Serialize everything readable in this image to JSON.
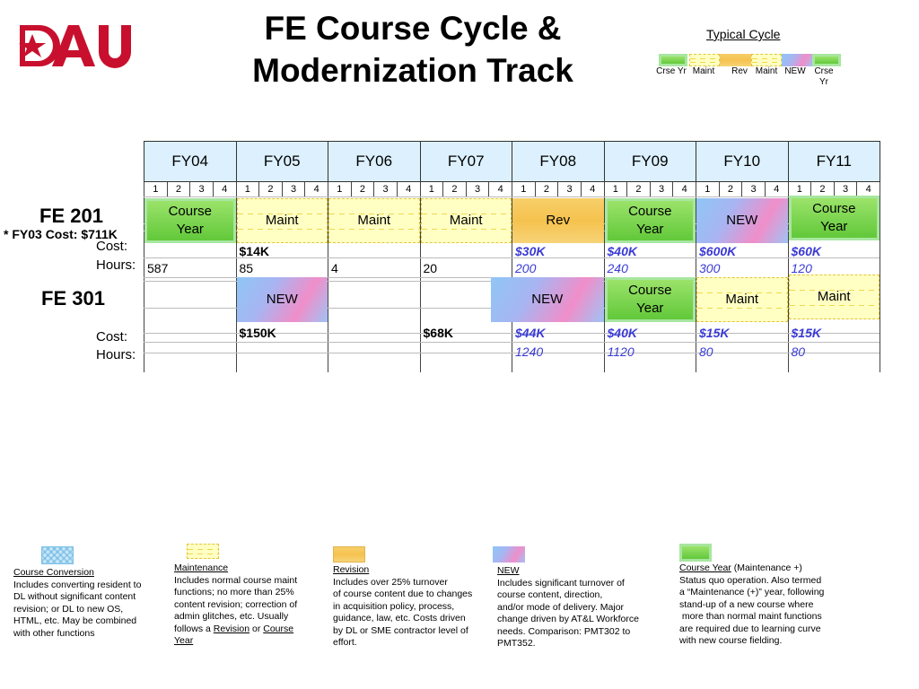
{
  "logo": {
    "text": "DAU"
  },
  "title": {
    "line1": "FE Course Cycle &",
    "line2": "Modernization Track"
  },
  "typical_cycle": {
    "title": "Typical Cycle",
    "labels": [
      "Crse Yr",
      "Maint",
      "Rev",
      "Maint",
      "NEW",
      "Crse Yr"
    ]
  },
  "fiscal_years": [
    "FY04",
    "FY05",
    "FY06",
    "FY07",
    "FY08",
    "FY09",
    "FY10",
    "FY11"
  ],
  "quarters": [
    "1",
    "2",
    "3",
    "4"
  ],
  "fe201": {
    "name": "FE 201",
    "note": "* FY03 Cost: $711K",
    "cost_label": "Cost:",
    "hours_label": "Hours:",
    "phases": [
      {
        "fy": "FY04",
        "label": "Course Year",
        "kind": "course_year"
      },
      {
        "fy": "FY05",
        "label": "Maint",
        "kind": "maintenance"
      },
      {
        "fy": "FY06",
        "label": "Maint",
        "kind": "maintenance"
      },
      {
        "fy": "FY07",
        "label": "Maint",
        "kind": "maintenance"
      },
      {
        "fy": "FY08",
        "label": "Rev",
        "kind": "revision"
      },
      {
        "fy": "FY09",
        "label": "Course Year",
        "kind": "course_year"
      },
      {
        "fy": "FY10",
        "label": "NEW",
        "kind": "new"
      },
      {
        "fy": "FY11",
        "label": "Course Year",
        "kind": "course_year"
      }
    ],
    "costs": {
      "FY05": "$14K",
      "FY08": "$30K",
      "FY09": "$40K",
      "FY10": "$600K",
      "FY11": "$60K"
    },
    "hours": {
      "FY04": "587",
      "FY05": "85",
      "FY06": "4",
      "FY07": "20",
      "FY08": "200",
      "FY09": "240",
      "FY10": "300",
      "FY11": "120"
    }
  },
  "fe301": {
    "name": "FE 301",
    "cost_label": "Cost:",
    "hours_label": "Hours:",
    "phases": [
      {
        "fy": "FY05",
        "label": "NEW",
        "kind": "new"
      },
      {
        "fy": "FY08",
        "label": "NEW",
        "kind": "new"
      },
      {
        "fy": "FY09",
        "label": "Course Year",
        "kind": "course_year"
      },
      {
        "fy": "FY10",
        "label": "Maint",
        "kind": "maintenance"
      },
      {
        "fy": "FY11",
        "label": "Maint",
        "kind": "maintenance"
      }
    ],
    "costs": {
      "FY05": "$150K",
      "FY07": "$68K",
      "FY08": "$44K",
      "FY09": "$40K",
      "FY10": "$15K",
      "FY11": "$15K"
    },
    "hours": {
      "FY08": "1240",
      "FY09": "1120",
      "FY10": "80",
      "FY11": "80"
    }
  },
  "legend": {
    "conversion": {
      "title": "Course Conversion",
      "lines": [
        "Includes converting resident to",
        "DL without significant content",
        "revision; or DL to new OS,",
        "HTML, etc.  May be combined",
        "with other functions"
      ]
    },
    "maintenance": {
      "title": "Maintenance",
      "lines": [
        "Includes normal course maint",
        "functions; no more than 25%",
        "content  revision; correction of",
        "admin glitches, etc.  Usually"
      ],
      "last_pre": "follows a ",
      "last_link1": "Revision",
      "last_mid": " or ",
      "last_link2": "Course ",
      "last_link3": "Year"
    },
    "revision": {
      "title": "Revision",
      "lines": [
        "Includes over 25% turnover",
        "of course content due to changes",
        "in acquisition policy, process,",
        "guidance, law, etc.  Costs driven",
        "by DL or SME contractor level of",
        "effort."
      ]
    },
    "new": {
      "title": "NEW",
      "lines": [
        "Includes significant turnover of",
        "course content, direction,",
        "and/or mode of delivery.  Major",
        "change driven by AT&L Workforce",
        "needs.  Comparison: PMT302 to",
        "PMT352."
      ]
    },
    "course_year": {
      "title": "Course Year",
      "title_suffix": " (Maintenance +)",
      "lines": [
        "Status quo operation.  Also termed",
        "a “Maintenance (+)” year, following",
        "stand-up of a new course where",
        " more than normal maint functions",
        "are required due to learning curve",
        "with new course fielding."
      ]
    }
  }
}
